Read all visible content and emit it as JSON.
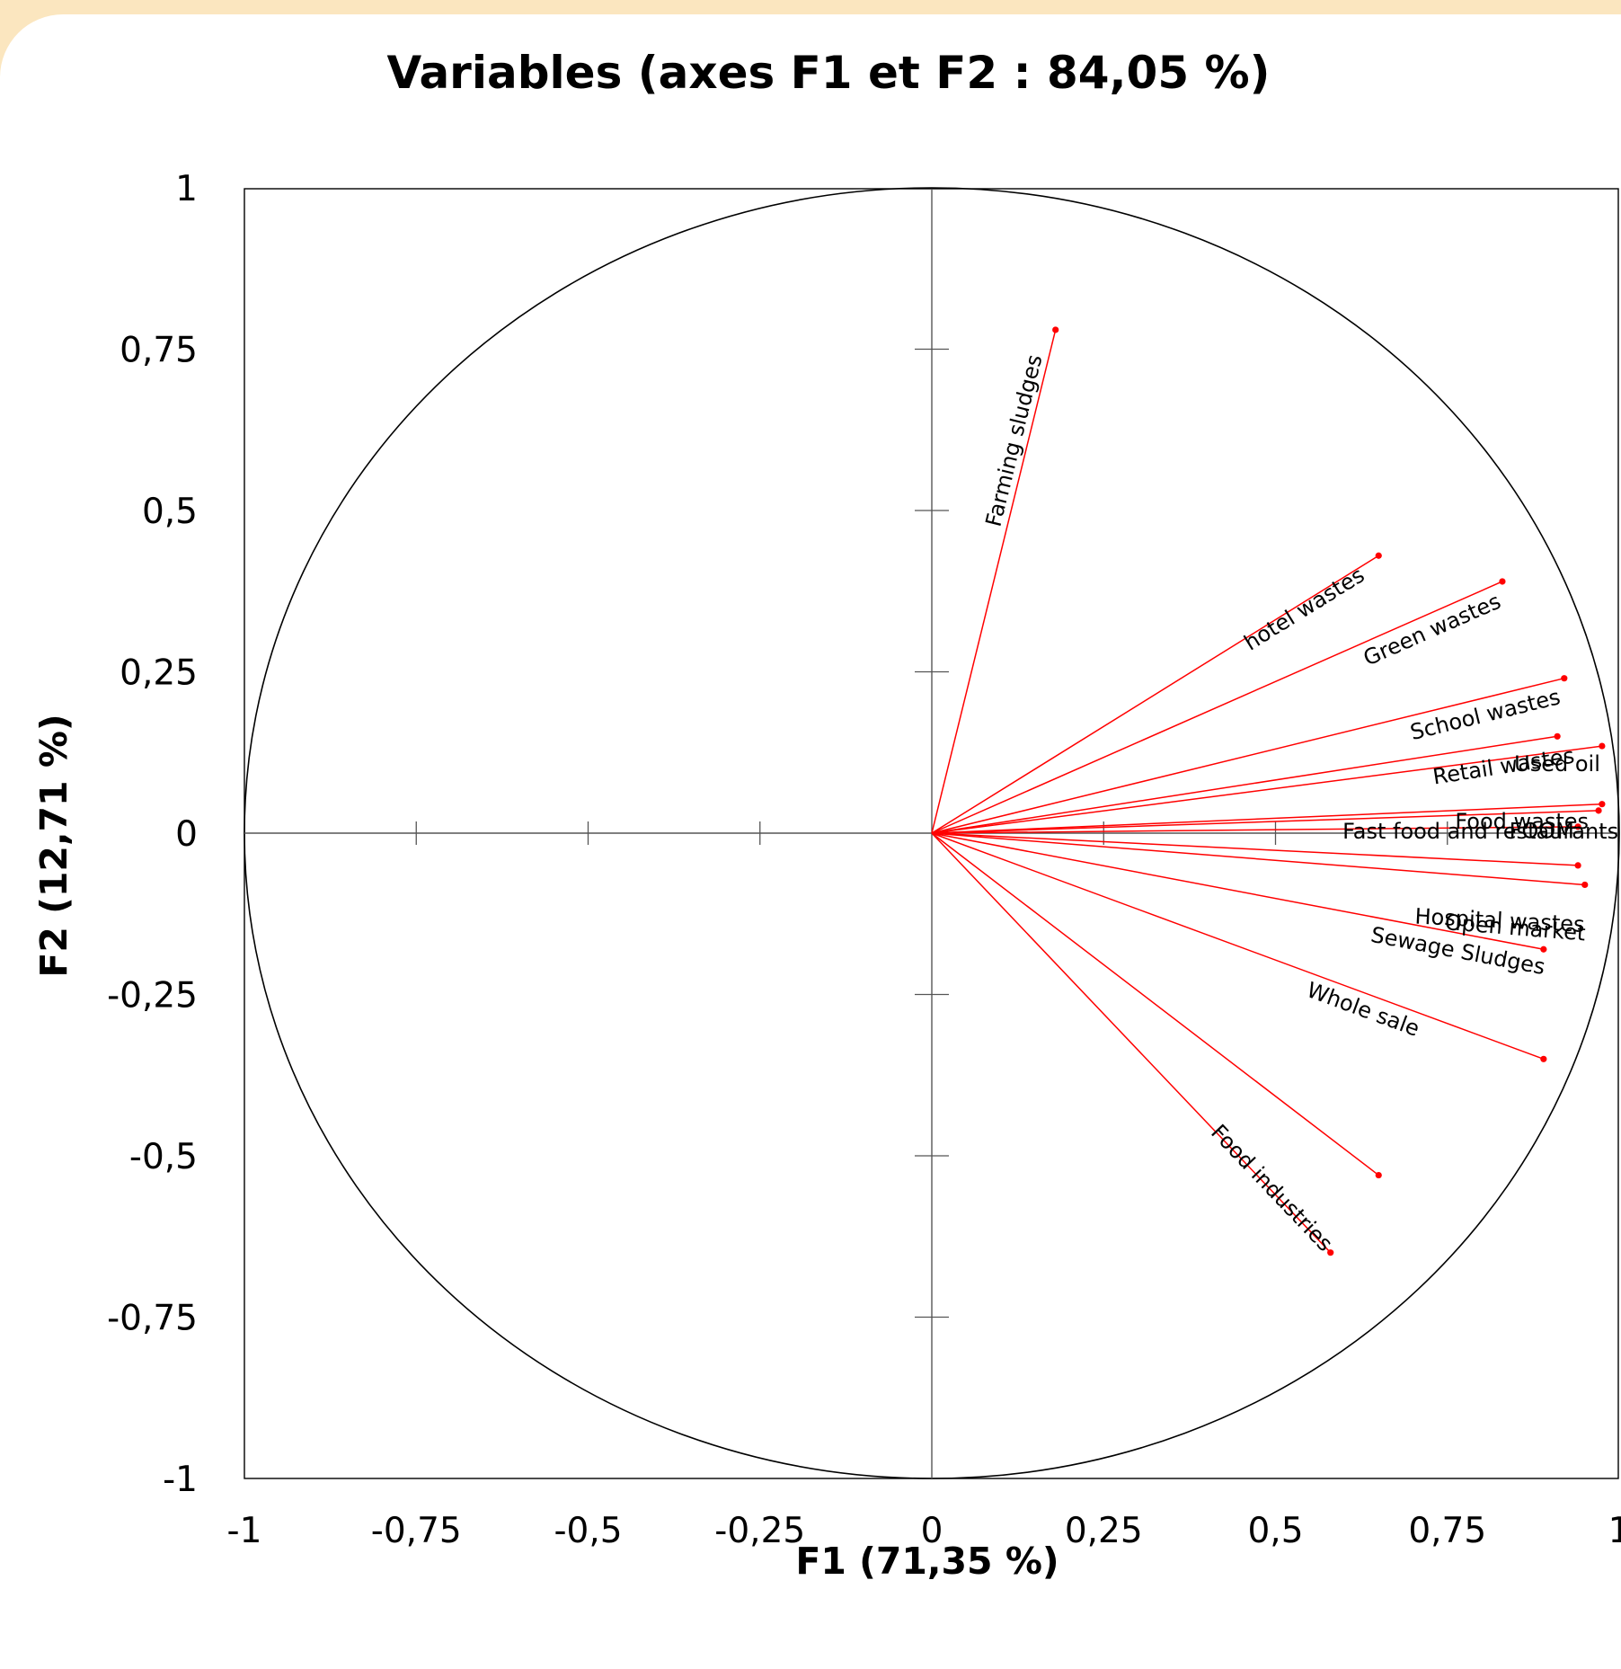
{
  "chart_data": {
    "type": "scatter",
    "subtype": "correlation-circle",
    "title": "Variables (axes F1 et F2 : 84,05 %)",
    "xlabel": "F1 (71,35 %)",
    "ylabel": "F2 (12,71 %)",
    "xlim": [
      -1,
      1
    ],
    "ylim": [
      -1,
      1
    ],
    "xticks": [
      "-1",
      "-0,75",
      "-0,5",
      "-0,25",
      "0",
      "0,25",
      "0,5",
      "0,75",
      "1"
    ],
    "yticks": [
      "1",
      "0,75",
      "0,5",
      "0,25",
      "0",
      "-0,25",
      "-0,5",
      "-0,75",
      "-1"
    ],
    "grid": false,
    "unit_circle": true,
    "vector_color": "#ff0000",
    "variables": [
      {
        "name": "Farming sludges",
        "x": 0.18,
        "y": 0.78
      },
      {
        "name": "hotel wastes",
        "x": 0.65,
        "y": 0.43
      },
      {
        "name": "Green wastes",
        "x": 0.83,
        "y": 0.39
      },
      {
        "name": "School wastes",
        "x": 0.92,
        "y": 0.24
      },
      {
        "name": "Retail wastes",
        "x": 0.91,
        "y": 0.15
      },
      {
        "name": "Used oil",
        "x": 0.975,
        "y": 0.135
      },
      {
        "name": "FOOM",
        "x": 0.975,
        "y": 0.045
      },
      {
        "name": "Food wastes",
        "x": 0.97,
        "y": 0.035
      },
      {
        "name": "Fast food and restaurants",
        "x": 0.94,
        "y": 0.01
      },
      {
        "name": "Hospital wastes",
        "x": 0.94,
        "y": -0.05
      },
      {
        "name": "Open market",
        "x": 0.95,
        "y": -0.08
      },
      {
        "name": "Sewage Sludges",
        "x": 0.89,
        "y": -0.18
      },
      {
        "name": "Whole sale",
        "x": 0.89,
        "y": -0.35
      },
      {
        "name": "Food industries",
        "x": 0.65,
        "y": -0.53
      },
      {
        "name": "Food industries B",
        "x": 0.58,
        "y": -0.65
      }
    ],
    "labels": [
      {
        "text": "Farming sludges",
        "for": "Farming sludges"
      },
      {
        "text": "hotel wastes",
        "for": "hotel wastes"
      },
      {
        "text": "Green wastes",
        "for": "Green wastes"
      },
      {
        "text": "School wastes",
        "for": "School wastes"
      },
      {
        "text": "Retail wastes",
        "for": "Retail wastes"
      },
      {
        "text": "Used oil",
        "for": "Used oil"
      },
      {
        "text": "FOOM",
        "for": "FOOM"
      },
      {
        "text": "Food wastes",
        "for": "Food wastes"
      },
      {
        "text": "Fast food and restaurants",
        "for": "Fast food and restaurants"
      },
      {
        "text": "Hospital wastes",
        "for": "Hospital wastes"
      },
      {
        "text": "Open market",
        "for": "Open market"
      },
      {
        "text": "Sewage Sludges",
        "for": "Sewage Sludges"
      },
      {
        "text": "Whole sale",
        "for": "Whole sale"
      },
      {
        "text": "Food industries",
        "for": "Food industries B"
      }
    ]
  }
}
